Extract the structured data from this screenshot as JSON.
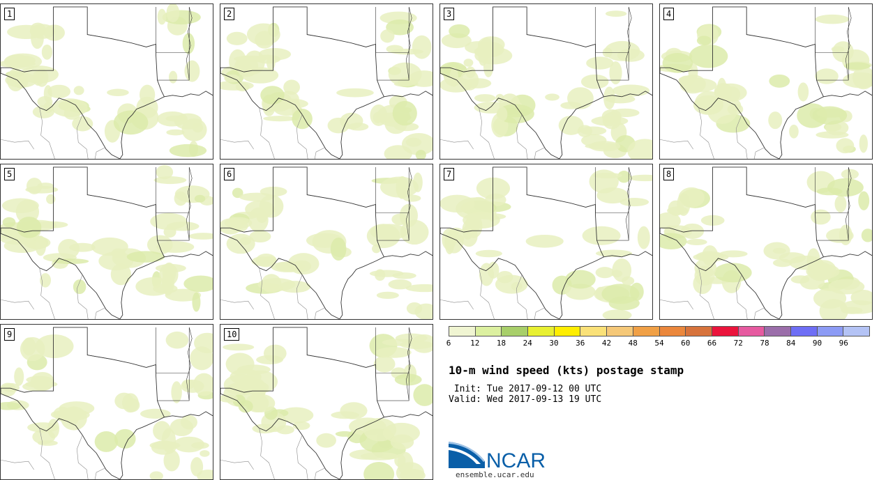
{
  "members": [
    "1",
    "2",
    "3",
    "4",
    "5",
    "6",
    "7",
    "8",
    "9",
    "10"
  ],
  "colorbar": {
    "colors": [
      "#f0f5d2",
      "#dcf0a0",
      "#a8cf6a",
      "#e8f032",
      "#ffee00",
      "#fae178",
      "#f5c878",
      "#f0a046",
      "#eb873c",
      "#d7733c",
      "#eb143c",
      "#e65aa0",
      "#9b6eaa",
      "#6e6ef5",
      "#8c9bf5",
      "#b4c3f5"
    ],
    "ticks": [
      "6",
      "12",
      "18",
      "24",
      "30",
      "36",
      "42",
      "48",
      "54",
      "60",
      "66",
      "72",
      "78",
      "84",
      "90",
      "96"
    ]
  },
  "title": "10-m wind speed (kts) postage stamp",
  "init_line": " Init: Tue 2017-09-12 00 UTC",
  "valid_line": "Valid: Wed 2017-09-13 19 UTC",
  "logo": {
    "name": "NCAR",
    "url": "ensemble.ucar.edu"
  },
  "colors": {
    "field_light": "#e8f0c0",
    "field_mid": "#dcebaa",
    "border": "#333333"
  }
}
